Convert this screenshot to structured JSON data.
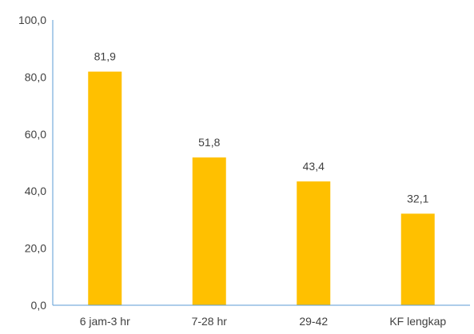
{
  "chart_data": {
    "type": "bar",
    "categories": [
      "6 jam-3 hr",
      "7-28 hr",
      "29-42",
      "KF lengkap"
    ],
    "values": [
      81.9,
      51.8,
      43.4,
      32.1
    ],
    "data_labels": [
      "81,9",
      "51,8",
      "43,4",
      "32,1"
    ],
    "y_ticks": [
      0,
      20,
      40,
      60,
      80,
      100
    ],
    "y_tick_labels": [
      "0,0",
      "20,0",
      "40,0",
      "60,0",
      "80,0",
      "100,0"
    ],
    "ylim": [
      0,
      100
    ],
    "title": "",
    "xlabel": "",
    "ylabel": "",
    "grid": false,
    "legend": "none",
    "bar_color": "#FFC000",
    "axis_color": "#5B9BD5",
    "text_color": "#404040"
  }
}
